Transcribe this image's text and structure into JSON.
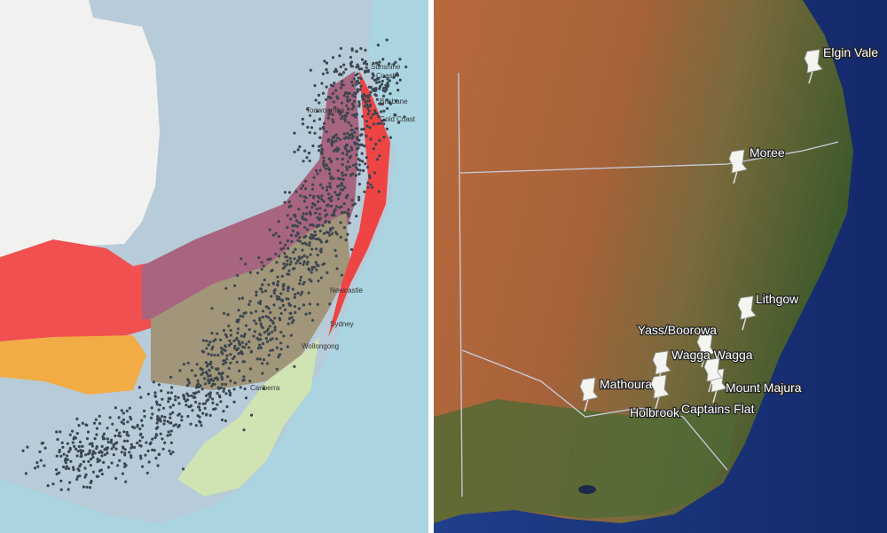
{
  "left_map": {
    "labels": [
      "Sunshine",
      "Coast",
      "Brisbane",
      "Gold Coast",
      "Toowoomba",
      "Newcastle",
      "Sydney",
      "Wollongong",
      "Canberra"
    ]
  },
  "right_map": {
    "pins": [
      "Elgin Vale",
      "Moree",
      "Lithgow",
      "Yass/Boorowa",
      "Wagga Wagga",
      "Mathoura",
      "Holbrook",
      "Mount Majura",
      "Captains Flat"
    ]
  }
}
